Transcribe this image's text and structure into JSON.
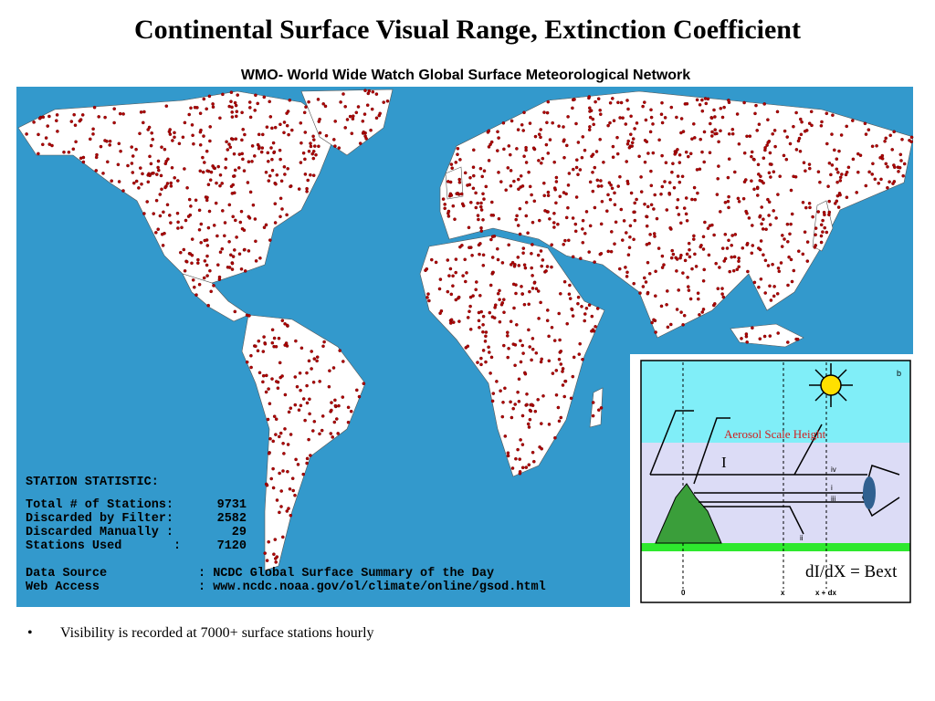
{
  "title": "Continental Surface Visual Range, Extinction Coefficient",
  "map": {
    "title": "WMO- World Wide Watch Global Surface Meteorological Network",
    "statistics": {
      "heading": "STATION STATISTIC:",
      "rows": [
        {
          "label": "Total # of Stations:",
          "value": "9731"
        },
        {
          "label": "Discarded by Filter:",
          "value": "2582"
        },
        {
          "label": "Discarded Manually :",
          "value": "29"
        },
        {
          "label": "Stations Used       :",
          "value": "7120"
        }
      ],
      "source": [
        {
          "label": "Data Source",
          "value": ": NCDC Global Surface Summary of the Day"
        },
        {
          "label": "Web Access",
          "value": ": www.ncdc.noaa.gov/ol/climate/online/gsod.html"
        }
      ]
    }
  },
  "diagram": {
    "panel_label": "b",
    "aerosol_label": "Aerosol Scale Height",
    "intensity_label": "I",
    "ray_labels": [
      "iv",
      "i",
      "iii",
      "ii"
    ],
    "equation": "dI/dX = Bext",
    "axis_labels": [
      "0",
      "x",
      "x + dx"
    ]
  },
  "bullets": [
    "Visibility is recorded at 7000+ surface stations hourly"
  ]
}
